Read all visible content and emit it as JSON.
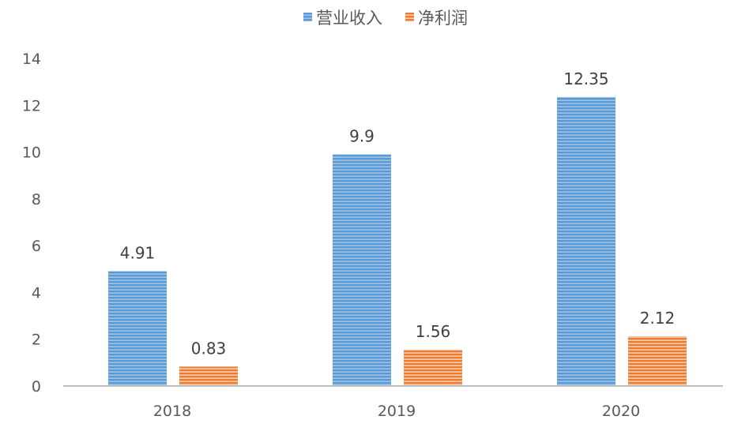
{
  "chart_data": {
    "type": "bar",
    "categories": [
      "2018",
      "2019",
      "2020"
    ],
    "series": [
      {
        "name": "营业收入",
        "values": [
          4.91,
          9.9,
          12.35
        ],
        "color": "#5B9BD5"
      },
      {
        "name": "净利润",
        "values": [
          0.83,
          1.56,
          2.12
        ],
        "color": "#ED7D31"
      }
    ],
    "data_labels": [
      [
        "4.91",
        "9.9",
        "12.35"
      ],
      [
        "0.83",
        "1.56",
        "2.12"
      ]
    ],
    "title": "",
    "xlabel": "",
    "ylabel": "",
    "ylim": [
      0,
      14
    ],
    "yticks": [
      "0",
      "2",
      "4",
      "6",
      "8",
      "10",
      "12",
      "14"
    ],
    "grid": false,
    "legend": "top-center"
  }
}
